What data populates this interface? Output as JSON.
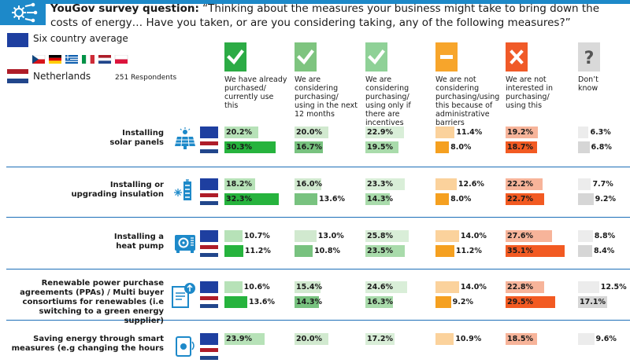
{
  "header": {
    "brand": "YouGov survey question:",
    "question": " “Thinking about the measures your business might take to bring down the costs of energy… Have you taken, or are you considering taking, any of the following measures?”"
  },
  "legend": {
    "avg_label": "Six country average",
    "nl_label": "Netherlands",
    "respondents": "251 Respondents"
  },
  "colors": {
    "brand_blue": "#1d89c9",
    "eu_blue": "#1e3fa0"
  },
  "chart_data": {
    "type": "bar",
    "series": [
      {
        "name": "Six country average"
      },
      {
        "name": "Netherlands"
      }
    ],
    "columns": [
      {
        "label": "We have already purchased/ currently use this",
        "icon": "check-icon",
        "color_avg": "#b7e2b8",
        "color_nl": "#26b33d",
        "head_lines": [
          "We have already",
          "purchased/",
          "currently use",
          "this"
        ]
      },
      {
        "label": "We are considering purchasing/ using in the next 12 months",
        "icon": "check-icon",
        "color_avg": "#d1e9cf",
        "color_nl": "#78c27f",
        "head_lines": [
          "We are",
          "considering",
          "purchasing/",
          "using in the next",
          "12 months"
        ]
      },
      {
        "label": "We are considering purchasing/ using only if there are incentives",
        "icon": "check-icon",
        "color_avg": "#d9eed8",
        "color_nl": "#a9dbab",
        "head_lines": [
          "We are",
          "considering",
          "purchasing/",
          "using only if",
          "there are",
          "incentives"
        ]
      },
      {
        "label": "We are not considering purchasing/using this because of administrative barriers",
        "icon": "minus-icon",
        "color_avg": "#fbd29c",
        "color_nl": "#f5a020",
        "head_lines": [
          "We are not",
          "considering",
          "purchasing/using",
          "this because of",
          "administrative",
          "barriers"
        ]
      },
      {
        "label": "We are not interested in purchasing/ using this",
        "icon": "cross-icon",
        "color_avg": "#f7b49a",
        "color_nl": "#f25a22",
        "head_lines": [
          "We are not",
          "interested in",
          "purchasing/",
          "using this"
        ]
      },
      {
        "label": "Don’t know",
        "icon": "question-icon",
        "color_avg": "#ececec",
        "color_nl": "#d6d6d6",
        "head_lines": [
          "Don’t",
          "know"
        ]
      }
    ],
    "rows": [
      {
        "label_lines": [
          "Installing",
          "solar panels"
        ],
        "icon": "solar-panel-icon",
        "avg": [
          20.2,
          20.0,
          22.9,
          11.4,
          19.2,
          6.3
        ],
        "nl": [
          30.3,
          16.7,
          19.5,
          8.0,
          18.7,
          6.8
        ],
        "avg_labels": [
          "20.2%",
          "20.0%",
          "22.9%",
          "11.4%",
          "19.2%",
          "6.3%"
        ],
        "nl_labels": [
          "30.3%",
          "16.7%",
          "19.5%",
          "8.0%",
          "18.7%",
          "6.8%"
        ]
      },
      {
        "label_lines": [
          "Installing or",
          "upgrading insulation"
        ],
        "icon": "insulation-icon",
        "avg": [
          18.2,
          16.0,
          23.3,
          12.6,
          22.2,
          7.7
        ],
        "nl": [
          32.3,
          13.6,
          14.3,
          8.0,
          22.7,
          9.2
        ],
        "avg_labels": [
          "18.2%",
          "16.0%",
          "23.3%",
          "12.6%",
          "22.2%",
          "7.7%"
        ],
        "nl_labels": [
          "32.3%",
          "13.6%",
          "14.3%",
          "8.0%",
          "22.7%",
          "9.2%"
        ]
      },
      {
        "label_lines": [
          "Installing a",
          "heat pump"
        ],
        "icon": "heat-pump-icon",
        "avg": [
          10.7,
          13.0,
          25.8,
          14.0,
          27.6,
          8.8
        ],
        "nl": [
          11.2,
          10.8,
          23.5,
          11.2,
          35.1,
          8.4
        ],
        "avg_labels": [
          "10.7%",
          "13.0%",
          "25.8%",
          "14.0%",
          "27.6%",
          "8.8%"
        ],
        "nl_labels": [
          "11.2%",
          "10.8%",
          "23.5%",
          "11.2%",
          "35.1%",
          "8.4%"
        ]
      },
      {
        "label_lines": [
          "Renewable power purchase",
          "agreements (PPAs) / Multi buyer",
          "consortiums for renewables (i.e",
          "switching to a green energy supplier)"
        ],
        "icon": "contract-icon",
        "avg": [
          10.6,
          15.4,
          24.6,
          14.0,
          22.8,
          12.5
        ],
        "nl": [
          13.6,
          14.3,
          16.3,
          9.2,
          29.5,
          17.1
        ],
        "avg_labels": [
          "10.6%",
          "15.4%",
          "24.6%",
          "14.0%",
          "22.8%",
          "12.5%"
        ],
        "nl_labels": [
          "13.6%",
          "14.3%",
          "16.3%",
          "9.2%",
          "29.5%",
          "17.1%"
        ]
      },
      {
        "label_lines": [
          "Saving energy through smart",
          "measures (e.g changing the hours"
        ],
        "icon": "smart-meter-icon",
        "avg": [
          23.9,
          20.0,
          17.2,
          10.9,
          18.5,
          9.6
        ],
        "nl": [
          null,
          null,
          null,
          null,
          null,
          null
        ],
        "avg_labels": [
          "23.9%",
          "20.0%",
          "17.2%",
          "10.9%",
          "18.5%",
          "9.6%"
        ],
        "nl_labels": [
          "",
          "",
          "",
          "",
          "",
          ""
        ]
      }
    ]
  }
}
